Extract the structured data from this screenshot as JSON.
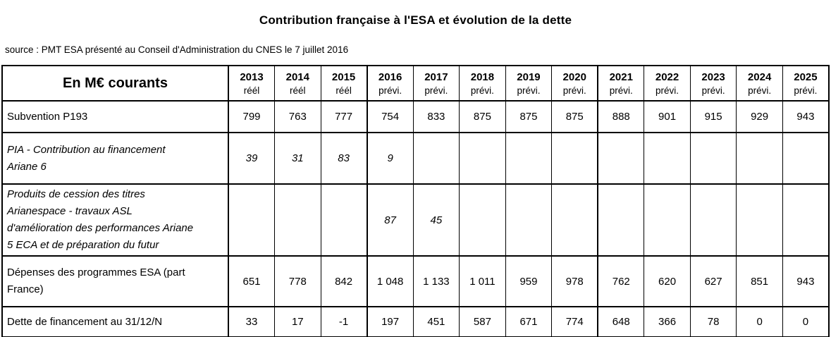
{
  "title": "Contribution française à l'ESA et évolution de la dette",
  "source_line": "source : PMT ESA présenté au Conseil d'Administration du CNES le 7 juillet 2016",
  "colors": {
    "text": "#000000",
    "border": "#000000",
    "background": "#ffffff"
  },
  "table": {
    "corner_label": "En M€ courants",
    "columns": [
      {
        "year": "2013",
        "type": "réél"
      },
      {
        "year": "2014",
        "type": "réél"
      },
      {
        "year": "2015",
        "type": "réél"
      },
      {
        "year": "2016",
        "type": "prévi."
      },
      {
        "year": "2017",
        "type": "prévi."
      },
      {
        "year": "2018",
        "type": "prévi."
      },
      {
        "year": "2019",
        "type": "prévi."
      },
      {
        "year": "2020",
        "type": "prévi."
      },
      {
        "year": "2021",
        "type": "prévi."
      },
      {
        "year": "2022",
        "type": "prévi."
      },
      {
        "year": "2023",
        "type": "prévi."
      },
      {
        "year": "2024",
        "type": "prévi."
      },
      {
        "year": "2025",
        "type": "prévi."
      }
    ],
    "thick_after_columns": [
      2,
      7
    ],
    "rows": [
      {
        "label": "Subvention P193",
        "italic": false,
        "values": [
          "799",
          "763",
          "777",
          "754",
          "833",
          "875",
          "875",
          "875",
          "888",
          "901",
          "915",
          "929",
          "943"
        ]
      },
      {
        "label": "PIA - Contribution au financement\nAriane 6",
        "italic": true,
        "values": [
          "39",
          "31",
          "83",
          "9",
          "",
          "",
          "",
          "",
          "",
          "",
          "",
          "",
          ""
        ]
      },
      {
        "label": "Produits de cession des titres\nArianespace  - travaux ASL\nd'amélioration des performances Ariane\n5 ECA et de préparation du futur",
        "italic": true,
        "values": [
          "",
          "",
          "",
          "87",
          "45",
          "",
          "",
          "",
          "",
          "",
          "",
          "",
          ""
        ]
      },
      {
        "label": "Dépenses des programmes ESA (part\nFrance)",
        "italic": false,
        "values": [
          "651",
          "778",
          "842",
          "1 048",
          "1 133",
          "1 011",
          "959",
          "978",
          "762",
          "620",
          "627",
          "851",
          "943"
        ]
      },
      {
        "label": "Dette de financement au 31/12/N",
        "italic": false,
        "values": [
          "33",
          "17",
          "-1",
          "197",
          "451",
          "587",
          "671",
          "774",
          "648",
          "366",
          "78",
          "0",
          "0"
        ]
      }
    ]
  }
}
